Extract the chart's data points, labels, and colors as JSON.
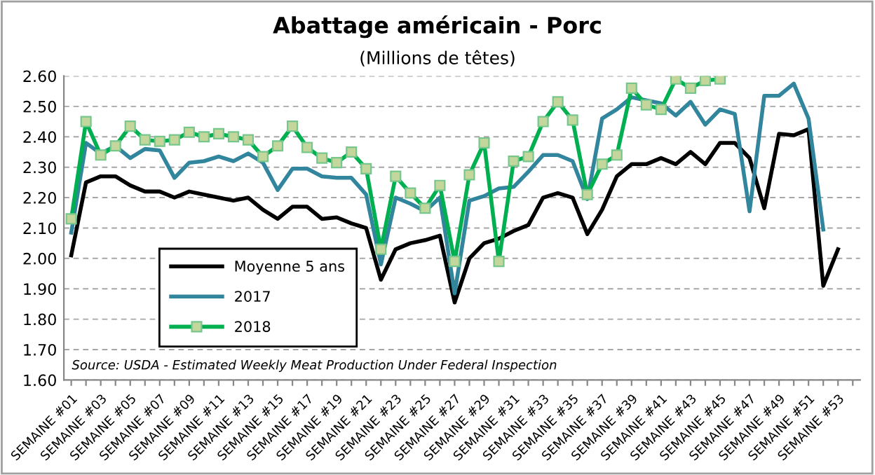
{
  "chart_data": {
    "type": "line",
    "title": "Abattage américain - Porc",
    "subtitle": "(Millions de têtes)",
    "categories": [
      "SEMAINE #01",
      null,
      "SEMAINE #03",
      null,
      "SEMAINE #05",
      null,
      "SEMAINE #07",
      null,
      "SEMAINE #09",
      null,
      "SEMAINE #11",
      null,
      "SEMAINE #13",
      null,
      "SEMAINE #15",
      null,
      "SEMAINE #17",
      null,
      "SEMAINE #19",
      null,
      "SEMAINE #21",
      null,
      "SEMAINE #23",
      null,
      "SEMAINE #25",
      null,
      "SEMAINE #27",
      null,
      "SEMAINE #29",
      null,
      "SEMAINE #31",
      null,
      "SEMAINE #33",
      null,
      "SEMAINE #35",
      null,
      "SEMAINE #37",
      null,
      "SEMAINE #39",
      null,
      "SEMAINE #41",
      null,
      "SEMAINE #43",
      null,
      "SEMAINE #45",
      null,
      "SEMAINE #47",
      null,
      "SEMAINE #49",
      null,
      "SEMAINE #51",
      null,
      "SEMAINE #53",
      null
    ],
    "series": [
      {
        "name": "Moyenne 5 ans",
        "color": "#000000",
        "marker": "none",
        "values": [
          2.01,
          2.25,
          2.27,
          2.27,
          2.24,
          2.22,
          2.22,
          2.2,
          2.22,
          2.21,
          2.2,
          2.19,
          2.2,
          2.16,
          2.13,
          2.17,
          2.17,
          2.13,
          2.135,
          2.115,
          2.1,
          1.93,
          2.03,
          2.05,
          2.06,
          2.075,
          1.855,
          2.0,
          2.05,
          2.065,
          2.09,
          2.11,
          2.2,
          2.215,
          2.2,
          2.08,
          2.16,
          2.27,
          2.31,
          2.31,
          2.33,
          2.31,
          2.35,
          2.31,
          2.38,
          2.38,
          2.33,
          2.165,
          2.41,
          2.405,
          2.425,
          1.91,
          2.03,
          null
        ]
      },
      {
        "name": "2017",
        "color": "#31859c",
        "marker": "none",
        "values": [
          2.085,
          2.38,
          2.345,
          2.37,
          2.33,
          2.36,
          2.355,
          2.265,
          2.315,
          2.32,
          2.335,
          2.32,
          2.345,
          2.315,
          2.225,
          2.295,
          2.295,
          2.27,
          2.265,
          2.265,
          2.21,
          1.98,
          2.2,
          2.18,
          2.155,
          2.2,
          1.885,
          2.19,
          2.205,
          2.23,
          2.235,
          2.285,
          2.34,
          2.34,
          2.32,
          2.195,
          2.46,
          2.49,
          2.53,
          2.52,
          2.51,
          2.47,
          2.515,
          2.44,
          2.49,
          2.475,
          2.155,
          2.535,
          2.535,
          2.575,
          2.46,
          2.095,
          null,
          null
        ]
      },
      {
        "name": "2018",
        "color": "#00b050",
        "marker": "square",
        "values": [
          2.13,
          2.45,
          2.34,
          2.37,
          2.435,
          2.39,
          2.385,
          2.39,
          2.415,
          2.4,
          2.41,
          2.4,
          2.39,
          2.335,
          2.37,
          2.435,
          2.365,
          2.33,
          2.315,
          2.35,
          2.295,
          2.03,
          2.27,
          2.215,
          2.165,
          2.24,
          1.99,
          2.275,
          2.38,
          1.99,
          2.32,
          2.335,
          2.45,
          2.515,
          2.455,
          2.21,
          2.31,
          2.34,
          2.56,
          2.505,
          2.49,
          2.59,
          2.56,
          2.585,
          2.59,
          null,
          null,
          null,
          null,
          null,
          null,
          null,
          null,
          null
        ]
      }
    ],
    "ylim": [
      1.6,
      2.6
    ],
    "yticks": [
      {
        "value": 1.6,
        "label": "1.60"
      },
      {
        "value": 1.7,
        "label": "1.70"
      },
      {
        "value": 1.8,
        "label": "1.80"
      },
      {
        "value": 1.9,
        "label": "1.90"
      },
      {
        "value": 2.0,
        "label": "2.00"
      },
      {
        "value": 2.1,
        "label": "2.10"
      },
      {
        "value": 2.2,
        "label": "2.20"
      },
      {
        "value": 2.3,
        "label": "2.30"
      },
      {
        "value": 2.4,
        "label": "2.40"
      },
      {
        "value": 2.5,
        "label": "2.50"
      },
      {
        "value": 2.6,
        "label": "2.60"
      }
    ],
    "grid": "y",
    "legend": "bottom left",
    "annotations": [
      "Source: USDA - Estimated Weekly Meat Production Under Federal Inspection"
    ]
  }
}
